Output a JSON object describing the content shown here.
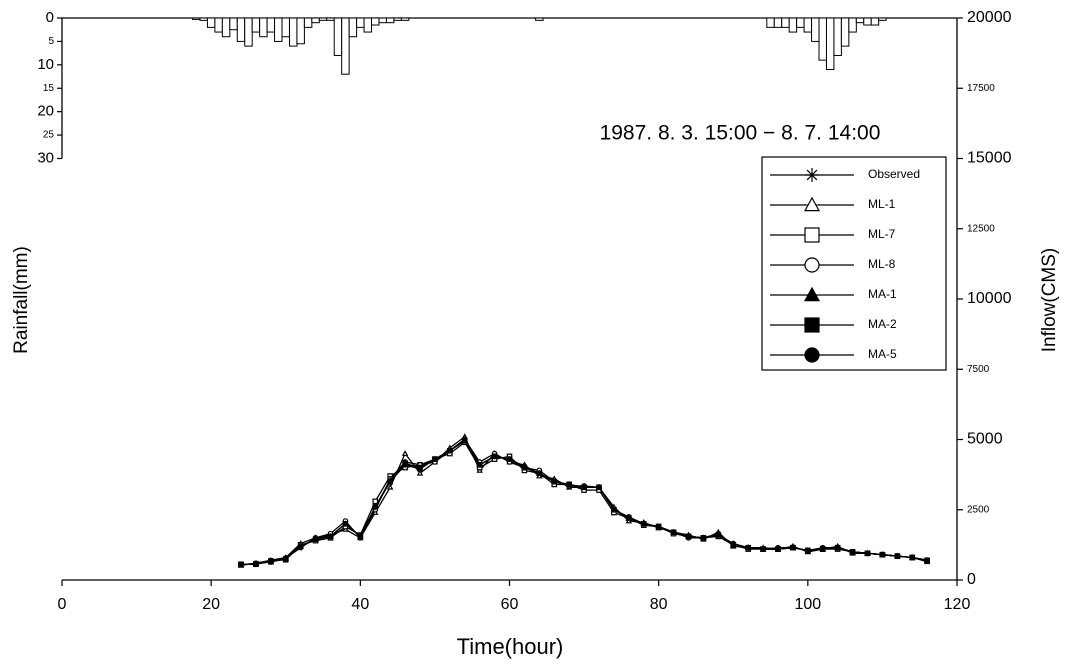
{
  "chart_data": [
    {
      "type": "bar",
      "ylabel": "Rainfall(mm)",
      "inverted": true,
      "color": "#000000",
      "xlim": [
        0,
        120
      ],
      "ylim": [
        0,
        120
      ],
      "yticks": [
        0,
        5,
        10,
        15,
        20,
        25,
        30
      ],
      "x": [
        18,
        19,
        20,
        21,
        22,
        23,
        24,
        25,
        26,
        27,
        28,
        29,
        30,
        31,
        32,
        33,
        34,
        35,
        36,
        37,
        38,
        39,
        40,
        41,
        42,
        43,
        44,
        45,
        46,
        64,
        95,
        96,
        97,
        98,
        99,
        100,
        101,
        102,
        103,
        104,
        105,
        106,
        107,
        108,
        109,
        110
      ],
      "values": [
        0.3,
        0.5,
        2,
        3,
        4,
        2.5,
        5,
        6,
        3,
        4,
        3,
        5,
        4,
        6,
        5.5,
        2,
        1,
        0.5,
        0.5,
        8,
        12,
        4,
        2,
        3,
        1.5,
        1,
        1,
        0.5,
        0.5,
        0.5,
        2,
        2,
        2,
        3,
        2,
        3,
        5,
        9,
        11,
        8,
        6,
        3,
        1,
        1.5,
        1.5,
        0.5
      ]
    },
    {
      "type": "line",
      "annotation": "1987. 8. 3. 15:00 − 8. 7. 14:00",
      "xlabel": "Time(hour)",
      "ylabel": "Inflow(CMS)",
      "legend": "right",
      "xlim": [
        0,
        120
      ],
      "xticks": [
        0,
        20,
        40,
        60,
        80,
        100,
        120
      ],
      "ylim": [
        0,
        20000
      ],
      "yticks": [
        0,
        2500,
        5000,
        7500,
        10000,
        12500,
        15000,
        17500,
        20000
      ],
      "x": [
        24,
        26,
        28,
        30,
        32,
        34,
        36,
        38,
        40,
        42,
        44,
        46,
        48,
        50,
        52,
        54,
        56,
        58,
        60,
        62,
        64,
        66,
        68,
        70,
        72,
        74,
        76,
        78,
        80,
        82,
        84,
        86,
        88,
        90,
        92,
        94,
        96,
        98,
        100,
        102,
        104,
        106,
        108,
        110,
        112,
        114,
        116
      ],
      "series": [
        {
          "name": "Observed",
          "color": "#000000",
          "marker": "asterisk",
          "values": [
            550,
            580,
            650,
            750,
            1200,
            1450,
            1550,
            2000,
            1550,
            2600,
            3500,
            4100,
            4000,
            4300,
            4600,
            5000,
            4100,
            4400,
            4300,
            4000,
            3800,
            3500,
            3400,
            3300,
            3300,
            2500,
            2200,
            2000,
            1900,
            1700,
            1550,
            1500,
            1600,
            1250,
            1150,
            1100,
            1100,
            1150,
            1050,
            1100,
            1150,
            1000,
            950,
            900,
            850,
            800,
            700
          ]
        },
        {
          "name": "ML-1",
          "color": "#000000",
          "marker": "triangle-open",
          "values": [
            520,
            600,
            700,
            800,
            1300,
            1500,
            1600,
            1800,
            1500,
            2400,
            3300,
            4500,
            3800,
            4200,
            4700,
            5100,
            3900,
            4500,
            4200,
            4100,
            3700,
            3600,
            3300,
            3300,
            3300,
            2600,
            2100,
            2050,
            1850,
            1700,
            1600,
            1450,
            1700,
            1200,
            1150,
            1150,
            1100,
            1200,
            1000,
            1100,
            1200,
            950,
            950,
            900,
            850,
            800,
            650
          ]
        },
        {
          "name": "ML-7",
          "color": "#000000",
          "marker": "square-open",
          "values": [
            560,
            560,
            680,
            720,
            1250,
            1400,
            1500,
            1900,
            1600,
            2800,
            3700,
            4000,
            4100,
            4300,
            4500,
            4900,
            4000,
            4300,
            4400,
            3900,
            3800,
            3400,
            3400,
            3200,
            3200,
            2400,
            2200,
            1950,
            1900,
            1650,
            1550,
            1500,
            1550,
            1250,
            1100,
            1100,
            1100,
            1150,
            1050,
            1100,
            1100,
            1000,
            950,
            900,
            850,
            800,
            700
          ]
        },
        {
          "name": "ML-8",
          "color": "#000000",
          "marker": "circle-open",
          "values": [
            540,
            590,
            640,
            780,
            1150,
            1500,
            1650,
            2100,
            1500,
            2500,
            3600,
            4200,
            4100,
            4200,
            4600,
            5000,
            4200,
            4500,
            4200,
            4000,
            3900,
            3500,
            3350,
            3350,
            3300,
            2500,
            2250,
            2000,
            1900,
            1700,
            1500,
            1500,
            1650,
            1250,
            1150,
            1100,
            1150,
            1150,
            1050,
            1150,
            1150,
            1000,
            950,
            900,
            850,
            800,
            700
          ]
        },
        {
          "name": "MA-1",
          "color": "#000000",
          "marker": "triangle",
          "values": [
            550,
            570,
            660,
            760,
            1200,
            1450,
            1550,
            2000,
            1550,
            2600,
            3550,
            4100,
            3950,
            4300,
            4600,
            5000,
            4100,
            4400,
            4300,
            4000,
            3800,
            3500,
            3400,
            3300,
            3300,
            2500,
            2200,
            2000,
            1900,
            1700,
            1550,
            1500,
            1600,
            1250,
            1150,
            1100,
            1100,
            1150,
            1050,
            1100,
            1150,
            1000,
            950,
            900,
            850,
            800,
            700
          ]
        },
        {
          "name": "MA-2",
          "color": "#000000",
          "marker": "square",
          "values": [
            550,
            580,
            650,
            750,
            1200,
            1450,
            1550,
            2000,
            1550,
            2600,
            3500,
            4150,
            4000,
            4300,
            4600,
            4950,
            4100,
            4400,
            4300,
            4000,
            3800,
            3500,
            3400,
            3300,
            3300,
            2500,
            2200,
            2000,
            1900,
            1700,
            1550,
            1500,
            1600,
            1250,
            1150,
            1100,
            1100,
            1150,
            1050,
            1100,
            1150,
            1000,
            950,
            900,
            850,
            800,
            700
          ]
        },
        {
          "name": "MA-5",
          "color": "#000000",
          "marker": "circle",
          "values": [
            550,
            580,
            650,
            750,
            1200,
            1450,
            1550,
            2000,
            1550,
            2600,
            3500,
            4100,
            4000,
            4300,
            4600,
            5000,
            4100,
            4400,
            4300,
            4050,
            3800,
            3500,
            3400,
            3300,
            3300,
            2500,
            2200,
            2000,
            1900,
            1700,
            1550,
            1500,
            1600,
            1300,
            1150,
            1100,
            1100,
            1150,
            1050,
            1100,
            1150,
            1000,
            950,
            900,
            850,
            800,
            700
          ]
        }
      ]
    }
  ]
}
